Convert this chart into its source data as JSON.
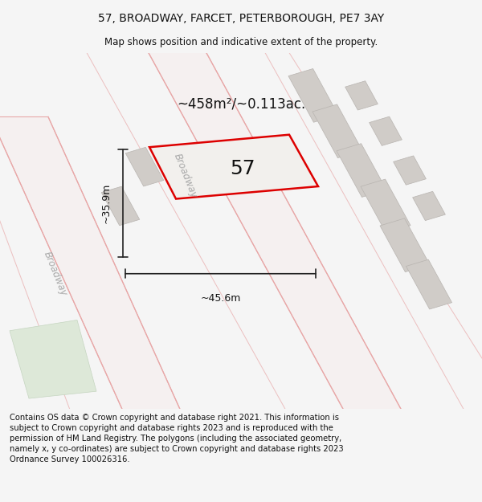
{
  "title": "57, BROADWAY, FARCET, PETERBOROUGH, PE7 3AY",
  "subtitle": "Map shows position and indicative extent of the property.",
  "title_fontsize": 10,
  "subtitle_fontsize": 8.5,
  "footer": "Contains OS data © Crown copyright and database right 2021. This information is subject to Crown copyright and database rights 2023 and is reproduced with the permission of HM Land Registry. The polygons (including the associated geometry, namely x, y co-ordinates) are subject to Crown copyright and database rights 2023 Ordnance Survey 100026316.",
  "footer_fontsize": 7.2,
  "bg_color": "#f5f5f5",
  "map_bg_color": "#f0eeeb",
  "area_label": "~458m²/~0.113ac.",
  "plot_number": "57",
  "dim_width": "~45.6m",
  "dim_height": "~35.9m",
  "road_label1": "Broadway",
  "road_label2": "Broadway",
  "plot_edge_color": "#dd0000",
  "plot_linewidth": 1.8,
  "road_line_color": "#e8a8a8",
  "road_fill_color": "#f5e8e8",
  "building_color": "#d0ccc8",
  "building_edge_color": "#b8b4b0",
  "dim_line_color": "#222222",
  "text_color": "#111111",
  "road_label_color": "#aaaaaa",
  "area_label_fontsize": 12,
  "plot_number_fontsize": 18
}
